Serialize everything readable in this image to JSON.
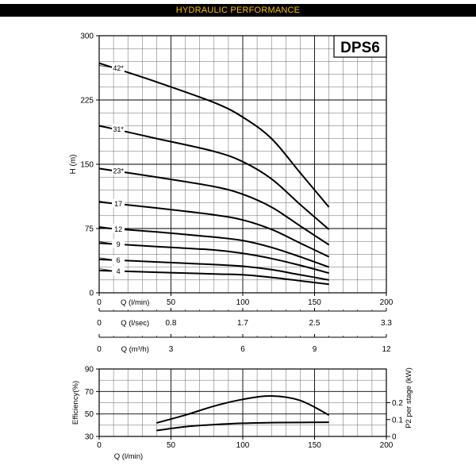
{
  "banner": {
    "title": "HYDRAULIC PERFORMANCE"
  },
  "chart_data": [
    {
      "type": "line",
      "title": "DPS6",
      "ylabel": "H (m)",
      "xlabel": "Q (l/min)",
      "xlim": [
        0,
        200
      ],
      "ylim": [
        0,
        300
      ],
      "xticks": [
        0,
        50,
        100,
        150,
        200
      ],
      "yticks": [
        0,
        75,
        150,
        225,
        300
      ],
      "grid": true,
      "x": [
        0,
        40,
        80,
        100,
        120,
        140,
        160
      ],
      "series": [
        {
          "name": "42*",
          "labelQ": 10,
          "values": [
            268,
            246,
            222,
            205,
            180,
            140,
            100
          ]
        },
        {
          "name": "31*",
          "labelQ": 10,
          "values": [
            195,
            180,
            165,
            153,
            133,
            103,
            74
          ]
        },
        {
          "name": "23*",
          "labelQ": 10,
          "values": [
            145,
            135,
            124,
            115,
            100,
            78,
            56
          ]
        },
        {
          "name": "17",
          "labelQ": 10,
          "values": [
            106,
            99,
            91,
            85,
            74,
            58,
            42
          ]
        },
        {
          "name": "12",
          "labelQ": 10,
          "values": [
            76,
            71,
            65,
            61,
            53,
            42,
            30
          ]
        },
        {
          "name": "9",
          "labelQ": 10,
          "values": [
            58,
            54,
            50,
            46,
            40,
            32,
            23
          ]
        },
        {
          "name": "6",
          "labelQ": 10,
          "values": [
            39,
            36,
            33,
            31,
            27,
            21,
            15
          ]
        },
        {
          "name": "4",
          "labelQ": 10,
          "values": [
            26,
            24,
            22,
            21,
            18,
            14,
            10
          ]
        }
      ]
    },
    {
      "type": "line",
      "ylabel": "Efficiency(%)",
      "y2label": "P2 per stage (kW)",
      "xlabel": "Q (l/min)",
      "xlim": [
        0,
        200
      ],
      "ylim": [
        30,
        90
      ],
      "y2lim": [
        0,
        0.4
      ],
      "xticks": [
        0,
        50,
        100,
        150,
        200
      ],
      "yticks": [
        30,
        50,
        70,
        90
      ],
      "y2ticks": [
        0,
        0.1,
        0.2
      ],
      "y2ticklabels": [
        "0",
        "0.1",
        "0.2"
      ],
      "grid": true,
      "efficiency": {
        "x": [
          40,
          60,
          80,
          100,
          120,
          140,
          160
        ],
        "values": [
          42,
          49,
          57,
          63,
          66,
          62,
          49
        ]
      },
      "power": {
        "x": [
          40,
          60,
          80,
          100,
          120,
          140,
          160
        ],
        "values": [
          0.035,
          0.058,
          0.07,
          0.078,
          0.082,
          0.083,
          0.084
        ]
      }
    }
  ],
  "flow_scales": [
    {
      "label": "Q (l/sec)",
      "ticks": [
        "0",
        "0.8",
        "1.7",
        "2.5",
        "3.3"
      ]
    },
    {
      "label": "Q (m³/h)",
      "ticks": [
        "0",
        "3",
        "6",
        "9",
        "12"
      ]
    }
  ]
}
